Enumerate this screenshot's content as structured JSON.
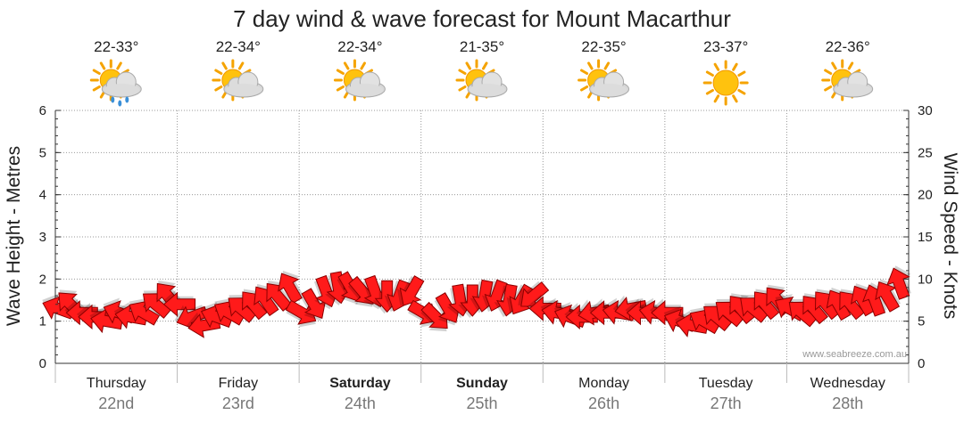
{
  "title": "7 day wind & wave forecast for Mount Macarthur",
  "watermark": "www.seabreeze.com.au",
  "days": [
    {
      "name": "Thursday",
      "date": "22nd",
      "temp": "22-33°",
      "icon": "sun-cloud-rain-icon",
      "bold": false
    },
    {
      "name": "Friday",
      "date": "23rd",
      "temp": "22-34°",
      "icon": "sun-cloud-icon",
      "bold": false
    },
    {
      "name": "Saturday",
      "date": "24th",
      "temp": "22-34°",
      "icon": "sun-cloud-icon",
      "bold": true
    },
    {
      "name": "Sunday",
      "date": "25th",
      "temp": "21-35°",
      "icon": "sun-cloud-icon",
      "bold": true
    },
    {
      "name": "Monday",
      "date": "26th",
      "temp": "22-35°",
      "icon": "sun-cloud-icon",
      "bold": false
    },
    {
      "name": "Tuesday",
      "date": "27th",
      "temp": "23-37°",
      "icon": "sun-icon",
      "bold": false
    },
    {
      "name": "Wednesday",
      "date": "28th",
      "temp": "22-36°",
      "icon": "sun-cloud-icon",
      "bold": false
    }
  ],
  "colors": {
    "arrow": "#ff1a1a",
    "arrow_outline": "#8b0000",
    "grid": "#999999",
    "axis": "#333333"
  },
  "chart_data": {
    "type": "line",
    "y_left": {
      "label": "Wave Height - Metres",
      "ticks": [
        "0",
        "1",
        "2",
        "3",
        "4",
        "5",
        "6"
      ],
      "range": [
        0,
        6
      ]
    },
    "y_right": {
      "label": "Wind Speed - Knots",
      "ticks": [
        "0",
        "5",
        "10",
        "15",
        "20",
        "25",
        "30"
      ],
      "range": [
        0,
        30
      ]
    },
    "grid": true,
    "series": [
      {
        "symbol": "wind-direction-arrow",
        "x": [
          0.0,
          0.1,
          0.2,
          0.3,
          0.4,
          0.5,
          0.6,
          0.7,
          0.8,
          0.9,
          1.0,
          1.1,
          1.2,
          1.3,
          1.4,
          1.5,
          1.6,
          1.7,
          1.8,
          1.9,
          2.0,
          2.1,
          2.2,
          2.3,
          2.4,
          2.5,
          2.6,
          2.7,
          2.8,
          2.9,
          3.0,
          3.1,
          3.2,
          3.3,
          3.4,
          3.5,
          3.6,
          3.7,
          3.8,
          3.9,
          4.0,
          4.1,
          4.2,
          4.3,
          4.4,
          4.5,
          4.6,
          4.7,
          4.8,
          4.9,
          5.0,
          5.1,
          5.2,
          5.3,
          5.4,
          5.5,
          5.6,
          5.7,
          5.8,
          5.9,
          6.0,
          6.1,
          6.2,
          6.3,
          6.4,
          6.5,
          6.6,
          6.7,
          6.8,
          6.9
        ],
        "values": [
          6.5,
          7,
          6,
          5.5,
          5,
          6,
          5.5,
          6,
          7,
          8,
          7,
          5.5,
          4.5,
          5.5,
          6,
          6.5,
          7,
          7.5,
          8,
          9,
          6,
          7,
          8.5,
          9,
          9,
          8.5,
          8.5,
          8,
          8,
          8.5,
          6,
          5.5,
          6.5,
          7.5,
          7.5,
          8,
          8,
          7.5,
          7.5,
          8,
          6.5,
          6,
          5.5,
          5.5,
          6,
          6,
          6,
          6.5,
          6,
          6,
          6,
          5,
          4.5,
          5,
          5.5,
          6,
          6.5,
          6.5,
          7,
          7.5,
          6.5,
          6,
          6.5,
          7,
          7,
          7,
          7.5,
          7.5,
          8,
          9.5
        ],
        "direction_deg": [
          200,
          225,
          180,
          180,
          190,
          200,
          190,
          210,
          220,
          230,
          180,
          160,
          170,
          200,
          210,
          220,
          230,
          235,
          230,
          240,
          30,
          60,
          70,
          80,
          60,
          50,
          70,
          90,
          110,
          120,
          30,
          45,
          60,
          80,
          90,
          100,
          110,
          100,
          120,
          140,
          180,
          190,
          200,
          180,
          170,
          180,
          190,
          170,
          180,
          190,
          180,
          200,
          190,
          210,
          220,
          220,
          230,
          220,
          230,
          230,
          210,
          220,
          230,
          230,
          240,
          230,
          240,
          250,
          240,
          250
        ]
      }
    ]
  }
}
